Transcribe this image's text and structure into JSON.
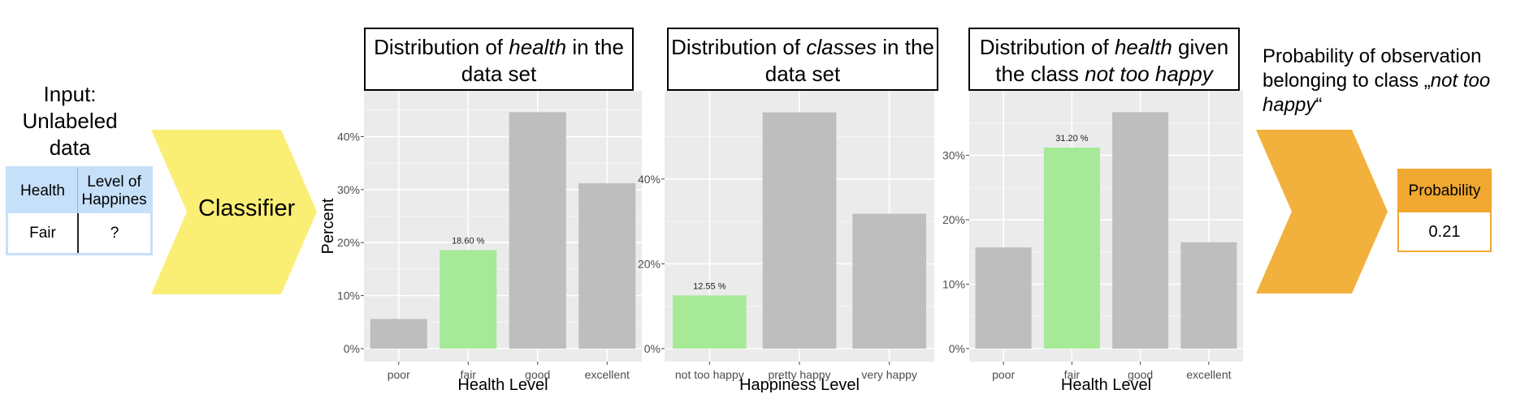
{
  "input": {
    "title_lines": [
      "Input:",
      "Unlabeled",
      "data"
    ],
    "table": {
      "headers": [
        "Health",
        "Level of Happines"
      ],
      "row": [
        "Fair",
        "?"
      ]
    }
  },
  "classifier": {
    "label": "Classifier"
  },
  "probability": {
    "title": {
      "prefix": "Probability of observation belonging to class „",
      "class_italic": "not too happy",
      "suffix": "“"
    },
    "header": "Probability",
    "value": "0.21"
  },
  "colors": {
    "highlight": "#a6ea98",
    "bar": "#bebebe",
    "panel": "#ebebeb",
    "input": "#c6e0fa",
    "arrow_in": "#fbee74",
    "arrow_out": "#f2b13c"
  },
  "chart_data": [
    {
      "type": "bar",
      "title": {
        "pre": "Distribution of ",
        "italic": "health",
        "post": " in the data set"
      },
      "xlabel": "Health Level",
      "ylabel": "Percent",
      "categories": [
        "poor",
        "fair",
        "good",
        "excellent"
      ],
      "values": [
        5.6,
        18.6,
        44.6,
        31.2
      ],
      "highlight_index": 1,
      "data_label": "18.60 %",
      "yticks": [
        0,
        10,
        20,
        30,
        40
      ],
      "ytick_labels": [
        "0%",
        "10%",
        "20%",
        "30%",
        "40%"
      ],
      "ylim": [
        0,
        46.8
      ]
    },
    {
      "type": "bar",
      "title": {
        "pre": "Distribution of ",
        "italic": "classes",
        "post": " in the data set"
      },
      "xlabel": "Happiness Level",
      "ylabel": "",
      "categories": [
        "not too happy",
        "pretty happy",
        "very happy"
      ],
      "values": [
        12.55,
        55.7,
        31.8
      ],
      "highlight_index": 0,
      "data_label": "12.55 %",
      "yticks": [
        0,
        20,
        40
      ],
      "ytick_labels": [
        "0%",
        "20%",
        "40%"
      ],
      "ylim": [
        0,
        58.5
      ]
    },
    {
      "type": "bar",
      "title": {
        "pre": "Distribution of ",
        "italic": "health",
        "post": " given the class ",
        "italic2": "not too happy"
      },
      "xlabel": "Health Level",
      "ylabel": "",
      "categories": [
        "poor",
        "fair",
        "good",
        "excellent"
      ],
      "values": [
        15.7,
        31.2,
        36.7,
        16.5
      ],
      "highlight_index": 1,
      "data_label": "31.20 %",
      "yticks": [
        0,
        10,
        20,
        30
      ],
      "ytick_labels": [
        "0%",
        "10%",
        "20%",
        "30%"
      ],
      "ylim": [
        0,
        38.5
      ]
    }
  ]
}
